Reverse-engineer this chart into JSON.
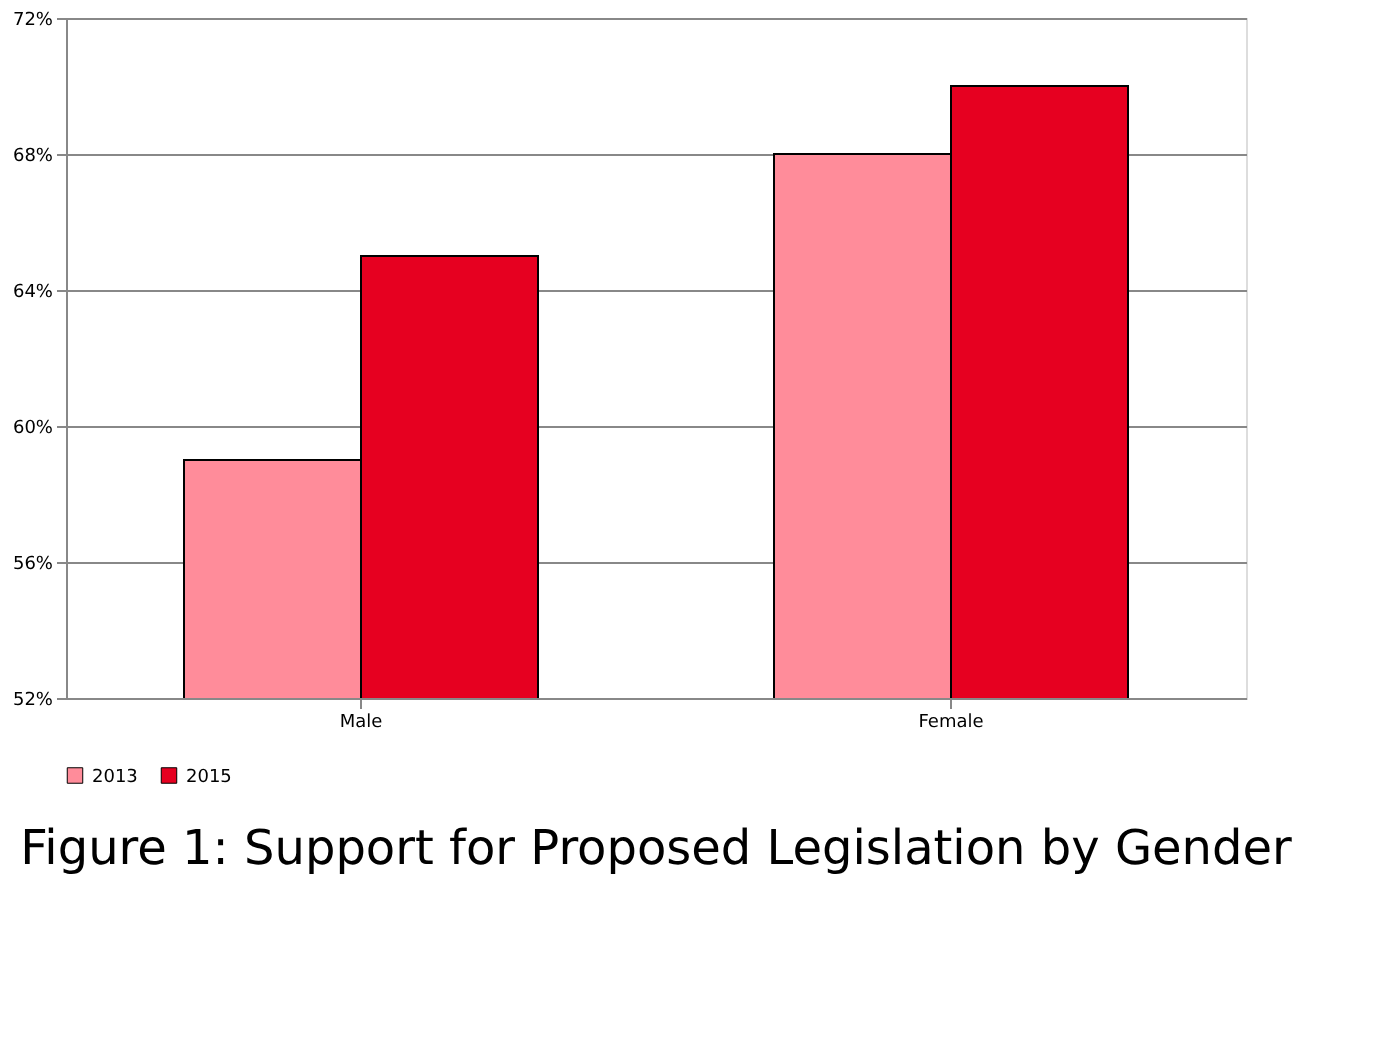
{
  "chart_data": {
    "type": "bar",
    "title": "Figure 1: Support for Proposed Legislation by Gender",
    "categories": [
      "Male",
      "Female"
    ],
    "series": [
      {
        "name": "2013",
        "color": "#ff8c9a",
        "values": [
          59,
          68
        ]
      },
      {
        "name": "2015",
        "color": "#e60020",
        "values": [
          65,
          70
        ]
      }
    ],
    "ylim": [
      52,
      72
    ],
    "yticks": [
      {
        "value": 52,
        "label": "52%"
      },
      {
        "value": 56,
        "label": "56%"
      },
      {
        "value": 60,
        "label": "60%"
      },
      {
        "value": 64,
        "label": "64%"
      },
      {
        "value": 68,
        "label": "68%"
      },
      {
        "value": 72,
        "label": "72%"
      }
    ],
    "grid": "y",
    "legend": "bottom"
  }
}
